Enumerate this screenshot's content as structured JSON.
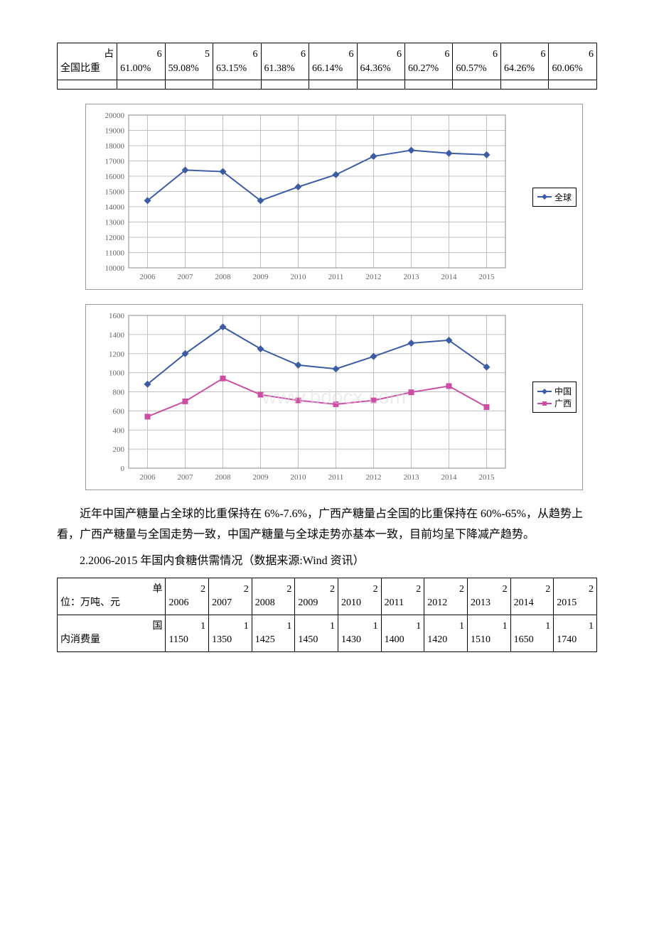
{
  "table1": {
    "label_top": "占",
    "label": "全国比重",
    "cells": [
      "61.00%",
      "59.08%",
      "63.15%",
      "61.38%",
      "66.14%",
      "64.36%",
      "60.27%",
      "60.57%",
      "64.26%",
      "60.06%"
    ]
  },
  "chart1": {
    "type": "line",
    "legend": [
      "全球"
    ],
    "series_colors": [
      "#3b5ba5"
    ],
    "marker": "diamond",
    "background": "#ffffff",
    "grid_color": "#c0c0c0",
    "x_labels": [
      "2006",
      "2007",
      "2008",
      "2009",
      "2010",
      "2011",
      "2012",
      "2013",
      "2014",
      "2015"
    ],
    "y_min": 10000,
    "y_max": 20000,
    "y_step": 1000,
    "series": [
      {
        "name": "全球",
        "color": "#3b5ba5",
        "values": [
          14400,
          16400,
          16300,
          14400,
          15300,
          16100,
          17300,
          17700,
          17500,
          17400
        ]
      }
    ]
  },
  "chart2": {
    "type": "line",
    "legend": [
      "中国",
      "广西"
    ],
    "series_colors": [
      "#3b5ba5",
      "#cc4da3"
    ],
    "markers": [
      "diamond",
      "square"
    ],
    "background": "#ffffff",
    "grid_color": "#c0c0c0",
    "x_labels": [
      "2006",
      "2007",
      "2008",
      "2009",
      "2010",
      "2011",
      "2012",
      "2013",
      "2014",
      "2015"
    ],
    "y_min": 0,
    "y_max": 1600,
    "y_step": 200,
    "series": [
      {
        "name": "中国",
        "color": "#3b5ba5",
        "values": [
          880,
          1200,
          1480,
          1250,
          1080,
          1040,
          1170,
          1310,
          1340,
          1060
        ]
      },
      {
        "name": "广西",
        "color": "#cc4da3",
        "values": [
          540,
          700,
          940,
          770,
          710,
          670,
          710,
          795,
          860,
          640
        ]
      }
    ],
    "watermark": "www.bdocx.com"
  },
  "paragraph1": "近年中国产糖量占全球的比重保持在 6%-7.6%，广西产糖量占全国的比重保持在 60%-65%，从趋势上看，广西产糖量与全国走势一致，中国产糖量与全球走势亦基本一致，目前均呈下降减产趋势。",
  "heading2": "2.2006-2015 年国内食糖供需情况（数据来源:Wind 资讯）",
  "table2": {
    "header_label_top": "单",
    "header_label": "位：万吨、元",
    "years": [
      "2006",
      "2007",
      "2008",
      "2009",
      "2010",
      "2011",
      "2012",
      "2013",
      "2014",
      "2015"
    ],
    "row1_label_top": "国",
    "row1_label": "内消费量",
    "row1_values": [
      "1150",
      "1350",
      "1425",
      "1450",
      "1430",
      "1400",
      "1420",
      "1510",
      "1650",
      "1740"
    ]
  }
}
